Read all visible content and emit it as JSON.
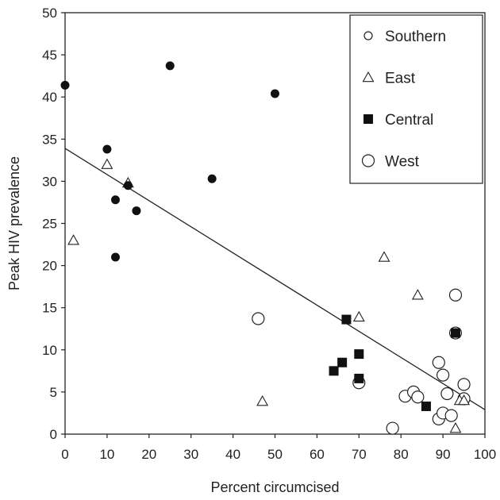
{
  "chart_data": {
    "type": "scatter",
    "xlabel": "Percent circumcised",
    "ylabel": "Peak HIV prevalence",
    "xlim": [
      0,
      100
    ],
    "ylim": [
      0,
      50
    ],
    "xticks": [
      "0",
      "10",
      "20",
      "30",
      "40",
      "50",
      "60",
      "70",
      "80",
      "90",
      "100"
    ],
    "yticks": [
      "0",
      "5",
      "10",
      "15",
      "20",
      "25",
      "30",
      "35",
      "40",
      "45",
      "50"
    ],
    "grid": false,
    "legend_position": "top-right",
    "series": [
      {
        "name": "Southern",
        "marker": "small-open-circle",
        "points": [
          [
            0,
            41.4
          ],
          [
            10,
            33.8
          ],
          [
            12,
            27.8
          ],
          [
            12,
            21
          ],
          [
            15,
            29.5
          ],
          [
            17,
            26.5
          ],
          [
            25,
            43.7
          ],
          [
            35,
            30.3
          ],
          [
            50,
            40.4
          ]
        ]
      },
      {
        "name": "East",
        "marker": "open-triangle",
        "points": [
          [
            2,
            23
          ],
          [
            10,
            32
          ],
          [
            15,
            29.8
          ],
          [
            47,
            3.9
          ],
          [
            70,
            13.9
          ],
          [
            76,
            21
          ],
          [
            84,
            16.5
          ],
          [
            93,
            0.7
          ],
          [
            94,
            4
          ],
          [
            95,
            4
          ]
        ]
      },
      {
        "name": "Central",
        "marker": "filled-square",
        "points": [
          [
            64,
            7.5
          ],
          [
            66,
            8.5
          ],
          [
            67,
            13.6
          ],
          [
            70,
            9.5
          ],
          [
            70,
            6.6
          ],
          [
            86,
            3.3
          ],
          [
            93,
            12
          ]
        ]
      },
      {
        "name": "West",
        "marker": "large-open-circle",
        "points": [
          [
            46,
            13.7
          ],
          [
            70,
            6.1
          ],
          [
            78,
            0.7
          ],
          [
            81,
            4.5
          ],
          [
            83,
            5
          ],
          [
            84,
            4.4
          ],
          [
            89,
            8.5
          ],
          [
            89,
            1.8
          ],
          [
            90,
            7
          ],
          [
            90,
            2.5
          ],
          [
            91,
            4.8
          ],
          [
            92,
            2.2
          ],
          [
            93,
            16.5
          ],
          [
            93,
            12
          ],
          [
            95,
            5.9
          ],
          [
            95,
            4.2
          ]
        ]
      }
    ],
    "trendline": {
      "intercept": 33.9,
      "slope": -0.31
    }
  }
}
